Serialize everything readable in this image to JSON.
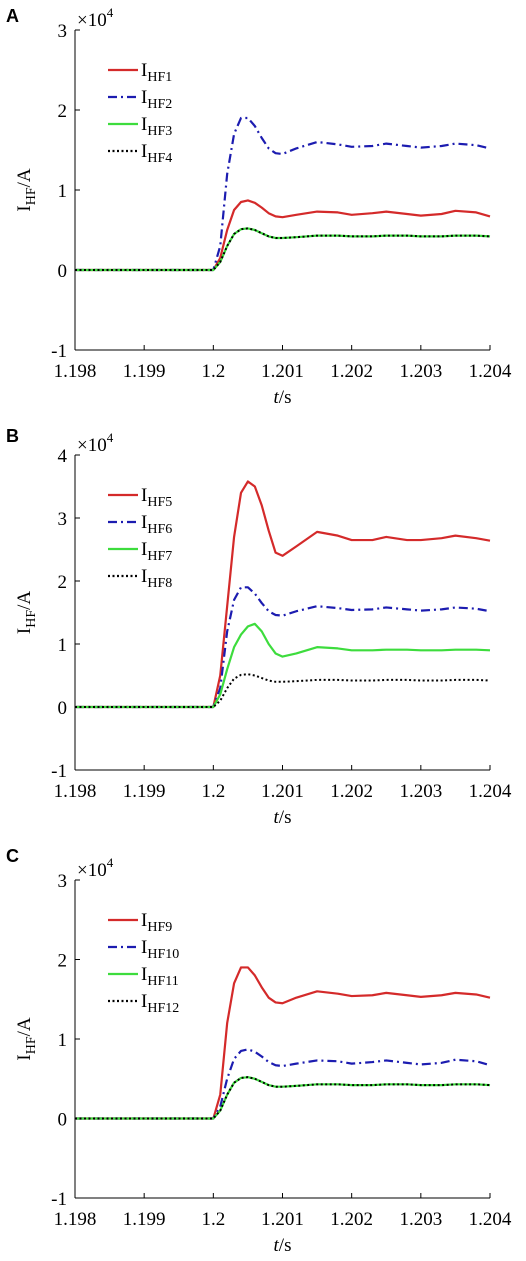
{
  "chart_data": [
    {
      "type": "line",
      "panel_label": "A",
      "ylabel": [
        "I",
        "HF",
        "/A"
      ],
      "yscale_label": [
        "×10",
        "4"
      ],
      "xlabel": [
        "t",
        "/s"
      ],
      "xlim": [
        1.198,
        1.204
      ],
      "xticks": [
        1.198,
        1.199,
        1.2,
        1.201,
        1.202,
        1.203,
        1.204
      ],
      "ylim": [
        -1,
        3
      ],
      "yticks": [
        -1,
        0,
        1,
        2,
        3
      ],
      "grid": false,
      "legend": "upper left",
      "x": [
        1.198,
        1.2,
        1.2001,
        1.2002,
        1.2003,
        1.2004,
        1.2005,
        1.2006,
        1.2007,
        1.2008,
        1.2009,
        1.201,
        1.2012,
        1.2015,
        1.2018,
        1.202,
        1.2023,
        1.2025,
        1.2028,
        1.203,
        1.2033,
        1.2035,
        1.2038,
        1.204
      ],
      "series": [
        {
          "name": {
            "main": "I",
            "sub": "HF1"
          },
          "color": "#d42a2a",
          "dash": "solid",
          "values": [
            0,
            0,
            0.15,
            0.5,
            0.75,
            0.85,
            0.87,
            0.84,
            0.78,
            0.71,
            0.67,
            0.66,
            0.69,
            0.73,
            0.72,
            0.69,
            0.71,
            0.73,
            0.7,
            0.68,
            0.7,
            0.74,
            0.72,
            0.67
          ]
        },
        {
          "name": {
            "main": "I",
            "sub": "HF2"
          },
          "color": "#1c1cb0",
          "dash": "dashdot",
          "values": [
            0,
            0,
            0.3,
            1.2,
            1.7,
            1.9,
            1.9,
            1.8,
            1.65,
            1.52,
            1.46,
            1.45,
            1.52,
            1.6,
            1.57,
            1.54,
            1.55,
            1.58,
            1.55,
            1.53,
            1.55,
            1.58,
            1.56,
            1.52
          ]
        },
        {
          "name": {
            "main": "I",
            "sub": "HF3"
          },
          "color": "#3ddc3d",
          "dash": "solid",
          "values": [
            0,
            0,
            0.1,
            0.3,
            0.45,
            0.51,
            0.52,
            0.5,
            0.46,
            0.42,
            0.4,
            0.4,
            0.41,
            0.43,
            0.43,
            0.42,
            0.42,
            0.43,
            0.43,
            0.42,
            0.42,
            0.43,
            0.43,
            0.42
          ]
        },
        {
          "name": {
            "main": "I",
            "sub": "HF4"
          },
          "color": "#000000",
          "dash": "dotted",
          "values": [
            0,
            0,
            0.1,
            0.3,
            0.45,
            0.51,
            0.52,
            0.5,
            0.46,
            0.42,
            0.4,
            0.4,
            0.41,
            0.43,
            0.43,
            0.42,
            0.42,
            0.43,
            0.43,
            0.42,
            0.42,
            0.43,
            0.43,
            0.42
          ]
        }
      ]
    },
    {
      "type": "line",
      "panel_label": "B",
      "ylabel": [
        "I",
        "HF",
        "/A"
      ],
      "yscale_label": [
        "×10",
        "4"
      ],
      "xlabel": [
        "t",
        "/s"
      ],
      "xlim": [
        1.198,
        1.204
      ],
      "xticks": [
        1.198,
        1.199,
        1.2,
        1.201,
        1.202,
        1.203,
        1.204
      ],
      "ylim": [
        -1,
        4
      ],
      "yticks": [
        -1,
        0,
        1,
        2,
        3,
        4
      ],
      "grid": false,
      "legend": "upper left",
      "x": [
        1.198,
        1.2,
        1.2001,
        1.2002,
        1.2003,
        1.2004,
        1.2005,
        1.2006,
        1.2007,
        1.2008,
        1.2009,
        1.201,
        1.2012,
        1.2015,
        1.2018,
        1.202,
        1.2023,
        1.2025,
        1.2028,
        1.203,
        1.2033,
        1.2035,
        1.2038,
        1.204
      ],
      "series": [
        {
          "name": {
            "main": "I",
            "sub": "HF5"
          },
          "color": "#d42a2a",
          "dash": "solid",
          "values": [
            0,
            0,
            0.5,
            1.6,
            2.7,
            3.4,
            3.58,
            3.5,
            3.2,
            2.8,
            2.45,
            2.4,
            2.55,
            2.78,
            2.72,
            2.65,
            2.65,
            2.7,
            2.65,
            2.65,
            2.68,
            2.72,
            2.68,
            2.64
          ]
        },
        {
          "name": {
            "main": "I",
            "sub": "HF6"
          },
          "color": "#1c1cb0",
          "dash": "dashdot",
          "values": [
            0,
            0,
            0.3,
            1.2,
            1.7,
            1.9,
            1.9,
            1.8,
            1.65,
            1.52,
            1.46,
            1.45,
            1.52,
            1.6,
            1.57,
            1.54,
            1.55,
            1.58,
            1.55,
            1.53,
            1.55,
            1.58,
            1.56,
            1.52
          ]
        },
        {
          "name": {
            "main": "I",
            "sub": "HF7"
          },
          "color": "#3ddc3d",
          "dash": "solid",
          "values": [
            0,
            0,
            0.2,
            0.6,
            0.95,
            1.15,
            1.28,
            1.32,
            1.2,
            1.0,
            0.85,
            0.8,
            0.85,
            0.95,
            0.93,
            0.9,
            0.9,
            0.91,
            0.91,
            0.9,
            0.9,
            0.91,
            0.91,
            0.9
          ]
        },
        {
          "name": {
            "main": "I",
            "sub": "HF8"
          },
          "color": "#000000",
          "dash": "dotted",
          "values": [
            0,
            0,
            0.1,
            0.3,
            0.45,
            0.51,
            0.52,
            0.5,
            0.46,
            0.42,
            0.4,
            0.4,
            0.41,
            0.43,
            0.43,
            0.42,
            0.42,
            0.43,
            0.43,
            0.42,
            0.42,
            0.43,
            0.43,
            0.42
          ]
        }
      ]
    },
    {
      "type": "line",
      "panel_label": "C",
      "ylabel": [
        "I",
        "HF",
        "/A"
      ],
      "yscale_label": [
        "×10",
        "4"
      ],
      "xlabel": [
        "t",
        "/s"
      ],
      "xlim": [
        1.198,
        1.204
      ],
      "xticks": [
        1.198,
        1.199,
        1.2,
        1.201,
        1.202,
        1.203,
        1.204
      ],
      "ylim": [
        -1,
        3
      ],
      "yticks": [
        -1,
        0,
        1,
        2,
        3
      ],
      "grid": false,
      "legend": "upper left",
      "x": [
        1.198,
        1.2,
        1.2001,
        1.2002,
        1.2003,
        1.2004,
        1.2005,
        1.2006,
        1.2007,
        1.2008,
        1.2009,
        1.201,
        1.2012,
        1.2015,
        1.2018,
        1.202,
        1.2023,
        1.2025,
        1.2028,
        1.203,
        1.2033,
        1.2035,
        1.2038,
        1.204
      ],
      "series": [
        {
          "name": {
            "main": "I",
            "sub": "HF9"
          },
          "color": "#d42a2a",
          "dash": "solid",
          "values": [
            0,
            0,
            0.3,
            1.2,
            1.7,
            1.9,
            1.9,
            1.8,
            1.65,
            1.52,
            1.46,
            1.45,
            1.52,
            1.6,
            1.57,
            1.54,
            1.55,
            1.58,
            1.55,
            1.53,
            1.55,
            1.58,
            1.56,
            1.52
          ]
        },
        {
          "name": {
            "main": "I",
            "sub": "HF10"
          },
          "color": "#1c1cb0",
          "dash": "dashdot",
          "values": [
            0,
            0,
            0.15,
            0.5,
            0.75,
            0.85,
            0.87,
            0.84,
            0.78,
            0.71,
            0.67,
            0.66,
            0.69,
            0.73,
            0.72,
            0.69,
            0.71,
            0.73,
            0.7,
            0.68,
            0.7,
            0.74,
            0.72,
            0.67
          ]
        },
        {
          "name": {
            "main": "I",
            "sub": "HF11"
          },
          "color": "#3ddc3d",
          "dash": "solid",
          "values": [
            0,
            0,
            0.1,
            0.3,
            0.45,
            0.51,
            0.52,
            0.5,
            0.46,
            0.42,
            0.4,
            0.4,
            0.41,
            0.43,
            0.43,
            0.42,
            0.42,
            0.43,
            0.43,
            0.42,
            0.42,
            0.43,
            0.43,
            0.42
          ]
        },
        {
          "name": {
            "main": "I",
            "sub": "HF12"
          },
          "color": "#000000",
          "dash": "dotted",
          "values": [
            0,
            0,
            0.1,
            0.3,
            0.45,
            0.51,
            0.52,
            0.5,
            0.46,
            0.42,
            0.4,
            0.4,
            0.41,
            0.43,
            0.43,
            0.42,
            0.42,
            0.43,
            0.43,
            0.42,
            0.42,
            0.43,
            0.43,
            0.42
          ]
        }
      ]
    }
  ]
}
